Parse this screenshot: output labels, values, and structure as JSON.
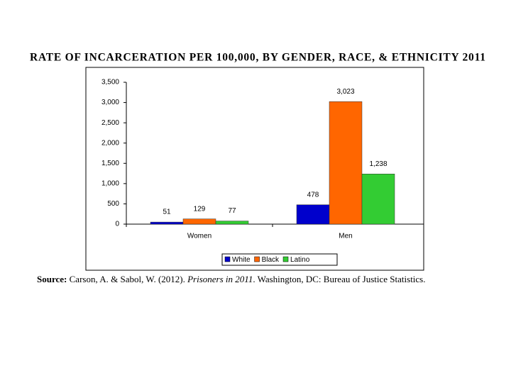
{
  "chart_data": {
    "type": "bar",
    "title": "RATE OF INCARCERATION PER 100,000, BY GENDER, RACE, & ETHNICITY 2011",
    "categories": [
      "Women",
      "Men"
    ],
    "series": [
      {
        "name": "White",
        "color": "#0000cc",
        "values": [
          51,
          478
        ]
      },
      {
        "name": "Black",
        "color": "#ff6600",
        "values": [
          129,
          3023
        ],
        "value_labels": [
          "129",
          "3,023"
        ]
      },
      {
        "name": "Latino",
        "color": "#33cc33",
        "values": [
          77,
          1238
        ],
        "value_labels": [
          "77",
          "1,238"
        ]
      }
    ],
    "ylim": [
      0,
      3500
    ],
    "yticks": [
      0,
      500,
      {
        "value": 1000,
        "label": "1,000"
      },
      {
        "value": 1500,
        "label": "1,500"
      },
      {
        "value": 2000,
        "label": "2,000"
      },
      {
        "value": 2500,
        "label": "2,500"
      },
      {
        "value": 3000,
        "label": "3,000"
      },
      {
        "value": 3500,
        "label": "3,500"
      }
    ],
    "legend": "bottom",
    "source": [
      "Source:",
      "Carson, A. & Sabol, W. (2012).",
      "Prisoners in 2011",
      ". Washington, DC: Bureau of Justice Statistics."
    ]
  }
}
